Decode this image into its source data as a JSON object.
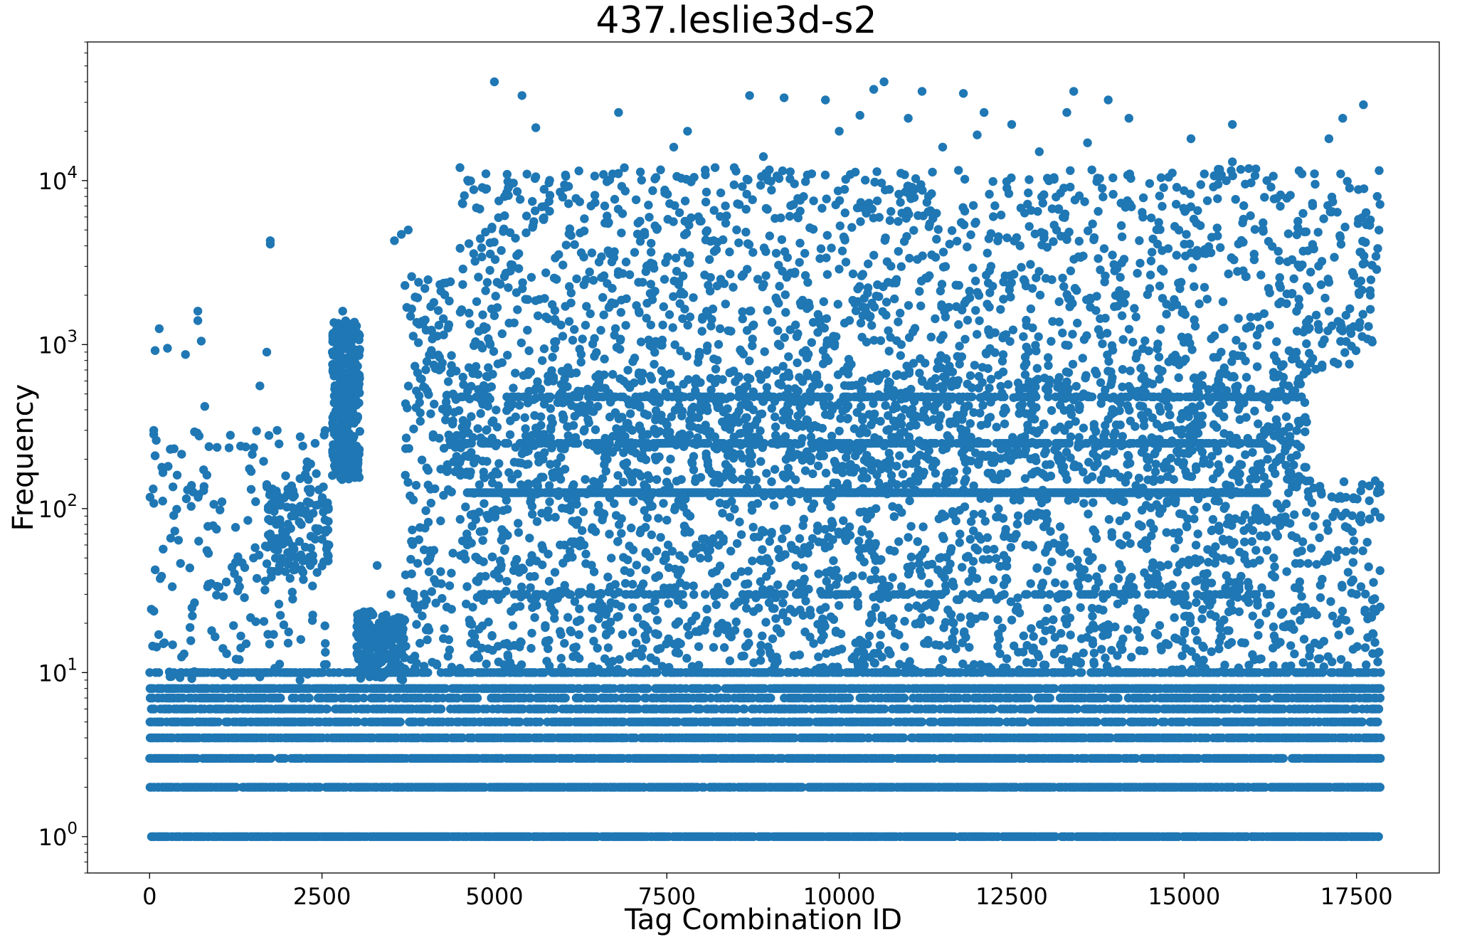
{
  "chart_data": {
    "type": "scatter",
    "title": "437.leslie3d-s2",
    "xlabel": "Tag Combination ID",
    "ylabel": "Frequency",
    "xlim": [
      -900,
      18700
    ],
    "ylim": [
      0.6,
      70000
    ],
    "yscale": "log",
    "grid": false,
    "marker_color": "#1f77b4",
    "x_ticks": [
      0,
      2500,
      5000,
      7500,
      10000,
      12500,
      15000,
      17500
    ],
    "x_tick_labels": [
      "0",
      "2500",
      "5000",
      "7500",
      "10000",
      "12500",
      "15000",
      "17500"
    ],
    "y_ticks": [
      {
        "value": 1,
        "base": "10",
        "exp": "0"
      },
      {
        "value": 10,
        "base": "10",
        "exp": "1"
      },
      {
        "value": 100,
        "base": "10",
        "exp": "2"
      },
      {
        "value": 1000,
        "base": "10",
        "exp": "3"
      },
      {
        "value": 10000,
        "base": "10",
        "exp": "4"
      }
    ],
    "points": [
      [
        5000,
        40000
      ],
      [
        5400,
        33000
      ],
      [
        6800,
        26000
      ],
      [
        8700,
        33000
      ],
      [
        9200,
        32000
      ],
      [
        9800,
        31000
      ],
      [
        10500,
        36000
      ],
      [
        10650,
        40000
      ],
      [
        11200,
        35000
      ],
      [
        11800,
        34000
      ],
      [
        12100,
        26000
      ],
      [
        13400,
        35000
      ],
      [
        13900,
        31000
      ],
      [
        14200,
        24000
      ],
      [
        15700,
        22000
      ],
      [
        17600,
        29000
      ],
      [
        17300,
        24000
      ],
      [
        17100,
        18000
      ],
      [
        5600,
        21000
      ],
      [
        7600,
        16000
      ],
      [
        7800,
        20000
      ],
      [
        8200,
        12000
      ],
      [
        8900,
        14000
      ],
      [
        9600,
        11000
      ],
      [
        10000,
        20000
      ],
      [
        10300,
        25000
      ],
      [
        11000,
        24000
      ],
      [
        11500,
        16000
      ],
      [
        12000,
        19000
      ],
      [
        12500,
        22000
      ],
      [
        12900,
        15000
      ],
      [
        13300,
        26000
      ],
      [
        13600,
        17000
      ],
      [
        14500,
        9600
      ],
      [
        15100,
        18000
      ],
      [
        15700,
        13000
      ],
      [
        16200,
        10000
      ],
      [
        16900,
        9500
      ],
      [
        17400,
        9000
      ],
      [
        17800,
        8000
      ],
      [
        4500,
        12000
      ],
      [
        4700,
        8800
      ],
      [
        5200,
        9000
      ],
      [
        5800,
        6500
      ],
      [
        6400,
        7000
      ],
      [
        1750,
        4300
      ],
      [
        1750,
        4100
      ],
      [
        3650,
        4700
      ],
      [
        3750,
        5000
      ],
      [
        3550,
        4300
      ],
      [
        700,
        1600
      ],
      [
        700,
        1400
      ],
      [
        140,
        1250
      ],
      [
        80,
        920
      ],
      [
        260,
        950
      ],
      [
        520,
        870
      ],
      [
        750,
        1050
      ],
      [
        1700,
        900
      ],
      [
        3900,
        2400
      ],
      [
        3850,
        1950
      ],
      [
        3800,
        2600
      ],
      [
        2800,
        1600
      ],
      [
        2900,
        1200
      ],
      [
        2700,
        1100
      ],
      [
        3000,
        1300
      ],
      [
        2650,
        900
      ],
      [
        300,
        230
      ],
      [
        60,
        300
      ],
      [
        80,
        210
      ],
      [
        400,
        160
      ],
      [
        800,
        420
      ],
      [
        550,
        130
      ],
      [
        1050,
        110
      ],
      [
        1600,
        560
      ],
      [
        1700,
        140
      ],
      [
        1850,
        300
      ],
      [
        2100,
        120
      ],
      [
        2400,
        250
      ],
      [
        2300,
        150
      ],
      [
        2200,
        80
      ],
      [
        1900,
        80
      ],
      [
        2000,
        65
      ],
      [
        1750,
        70
      ],
      [
        2500,
        65
      ],
      [
        2600,
        60
      ],
      [
        3300,
        45
      ],
      [
        3500,
        30
      ],
      [
        3800,
        40
      ],
      [
        4200,
        700
      ],
      [
        4400,
        500
      ],
      [
        4300,
        400
      ],
      [
        4600,
        330
      ],
      [
        4800,
        380
      ],
      [
        5200,
        430
      ],
      [
        5600,
        310
      ],
      [
        6000,
        350
      ],
      [
        6500,
        420
      ],
      [
        7000,
        300
      ],
      [
        7400,
        470
      ],
      [
        7900,
        360
      ],
      [
        8400,
        310
      ],
      [
        8900,
        450
      ],
      [
        9400,
        330
      ],
      [
        9900,
        400
      ],
      [
        10400,
        290
      ],
      [
        10900,
        360
      ],
      [
        11400,
        480
      ],
      [
        11900,
        330
      ],
      [
        12400,
        410
      ],
      [
        12900,
        300
      ],
      [
        13400,
        460
      ],
      [
        13900,
        350
      ],
      [
        14400,
        420
      ],
      [
        14900,
        300
      ],
      [
        15400,
        470
      ],
      [
        15900,
        360
      ],
      [
        16400,
        520
      ],
      [
        16700,
        480
      ],
      [
        5000,
        1500
      ],
      [
        5900,
        2500
      ],
      [
        6700,
        1800
      ],
      [
        7300,
        3100
      ],
      [
        8100,
        2300
      ],
      [
        8700,
        1600
      ],
      [
        9500,
        3600
      ],
      [
        10200,
        2700
      ],
      [
        10800,
        1900
      ],
      [
        11600,
        4100
      ],
      [
        12200,
        3000
      ],
      [
        12800,
        2200
      ],
      [
        13500,
        3400
      ],
      [
        14100,
        1500
      ],
      [
        14700,
        2800
      ],
      [
        15300,
        3800
      ],
      [
        15900,
        2600
      ],
      [
        16500,
        3200
      ],
      [
        17100,
        2400
      ],
      [
        17700,
        2000
      ],
      [
        4600,
        70
      ],
      [
        5100,
        45
      ],
      [
        5800,
        110
      ],
      [
        6300,
        60
      ],
      [
        6900,
        35
      ],
      [
        7500,
        85
      ],
      [
        8100,
        50
      ],
      [
        8600,
        30
      ],
      [
        9200,
        75
      ],
      [
        9700,
        40
      ],
      [
        10300,
        95
      ],
      [
        10800,
        55
      ],
      [
        11300,
        35
      ],
      [
        11900,
        65
      ],
      [
        12400,
        45
      ],
      [
        13000,
        80
      ],
      [
        13500,
        30
      ],
      [
        14100,
        60
      ],
      [
        14600,
        40
      ],
      [
        15200,
        70
      ],
      [
        15800,
        35
      ],
      [
        16300,
        50
      ],
      [
        16900,
        90
      ],
      [
        17500,
        30
      ],
      [
        5300,
        25
      ],
      [
        6100,
        18
      ],
      [
        6800,
        22
      ],
      [
        7700,
        15
      ],
      [
        8300,
        20
      ],
      [
        9000,
        13
      ],
      [
        9800,
        25
      ],
      [
        10600,
        17
      ],
      [
        11500,
        12
      ],
      [
        12300,
        21
      ],
      [
        13200,
        14
      ],
      [
        14000,
        19
      ],
      [
        14900,
        16
      ],
      [
        15700,
        24
      ],
      [
        16600,
        13
      ],
      [
        17400,
        18
      ],
      [
        3100,
        12
      ],
      [
        3200,
        18
      ],
      [
        3300,
        15
      ],
      [
        3400,
        20
      ],
      [
        3500,
        11
      ],
      [
        3600,
        14
      ],
      [
        1300,
        12
      ],
      [
        1400,
        15
      ],
      [
        900,
        18
      ],
      [
        500,
        13
      ],
      [
        200,
        15
      ]
    ],
    "bands": [
      {
        "y": 1,
        "x_from": 0,
        "x_to": 17850,
        "density": 0.9
      },
      {
        "y": 2,
        "x_from": 0,
        "x_to": 17850,
        "density": 0.85
      },
      {
        "y": 3,
        "x_from": 0,
        "x_to": 17850,
        "density": 0.8
      },
      {
        "y": 4,
        "x_from": 0,
        "x_to": 17850,
        "density": 0.75
      },
      {
        "y": 5,
        "x_from": 0,
        "x_to": 17850,
        "density": 0.65
      },
      {
        "y": 6,
        "x_from": 0,
        "x_to": 17850,
        "density": 0.6
      },
      {
        "y": 7,
        "x_from": 0,
        "x_to": 17850,
        "density": 0.55
      },
      {
        "y": 8,
        "x_from": 0,
        "x_to": 17850,
        "density": 0.75
      },
      {
        "y": 10,
        "x_from": 0,
        "x_to": 17850,
        "density": 0.55
      },
      {
        "y": 125,
        "x_from": 4600,
        "x_to": 16200,
        "density": 0.9
      },
      {
        "y": 250,
        "x_from": 4400,
        "x_to": 16200,
        "density": 0.5
      },
      {
        "y": 480,
        "x_from": 4400,
        "x_to": 16700,
        "density": 0.4
      },
      {
        "y": 30,
        "x_from": 4800,
        "x_to": 16300,
        "density": 0.25
      }
    ],
    "clusters": [
      {
        "x_from": 2650,
        "x_to": 3050,
        "y_from": 150,
        "y_to": 1400,
        "count": 320
      },
      {
        "x_from": 3000,
        "x_to": 3700,
        "y_from": 9,
        "y_to": 24,
        "count": 220
      },
      {
        "x_from": 4300,
        "x_to": 16800,
        "y_from": 150,
        "y_to": 700,
        "count": 1400
      },
      {
        "x_from": 4500,
        "x_to": 17850,
        "y_from": 10,
        "y_to": 150,
        "count": 1600
      },
      {
        "x_from": 4500,
        "x_to": 17850,
        "y_from": 700,
        "y_to": 12000,
        "count": 1300
      },
      {
        "x_from": 0,
        "x_to": 2600,
        "y_from": 9,
        "y_to": 300,
        "count": 180
      },
      {
        "x_from": 1700,
        "x_to": 2600,
        "y_from": 40,
        "y_to": 140,
        "count": 120
      },
      {
        "x_from": 3700,
        "x_to": 4400,
        "y_from": 10,
        "y_to": 2500,
        "count": 160
      }
    ]
  }
}
